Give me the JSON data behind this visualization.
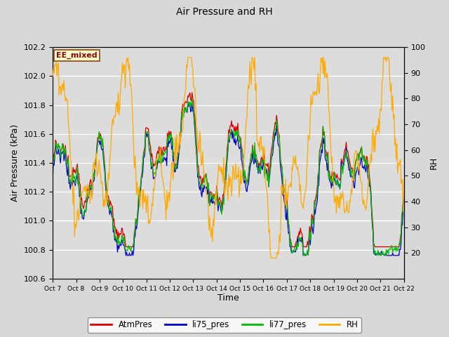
{
  "title": "Air Pressure and RH",
  "xlabel": "Time",
  "ylabel_left": "Air Pressure (kPa)",
  "ylabel_right": "RH",
  "ylim_left": [
    100.6,
    102.2
  ],
  "ylim_right": [
    10,
    100
  ],
  "yticks_left": [
    100.6,
    100.8,
    101.0,
    101.2,
    101.4,
    101.6,
    101.8,
    102.0,
    102.2
  ],
  "yticks_right": [
    20,
    30,
    40,
    50,
    60,
    70,
    80,
    90,
    100
  ],
  "x_tick_labels": [
    "Oct 7",
    "Oct 8",
    "Oct 9",
    "Oct 10",
    "Oct 11",
    "Oct 12",
    "Oct 13",
    "Oct 14",
    "Oct 15",
    "Oct 16",
    "Oct 17",
    "Oct 18",
    "Oct 19",
    "Oct 20",
    "Oct 21",
    "Oct 22"
  ],
  "annotation_text": "EE_mixed",
  "annotation_box_facecolor": "#ffffcc",
  "annotation_box_edgecolor": "#8b4513",
  "annotation_text_color": "#8b0000",
  "fig_facecolor": "#d8d8d8",
  "plot_facecolor": "#dcdcdc",
  "colors": {
    "AtmPres": "#dd0000",
    "li75_pres": "#0000cc",
    "li77_pres": "#00bb00",
    "RH": "#ffaa00"
  },
  "n_points": 500
}
